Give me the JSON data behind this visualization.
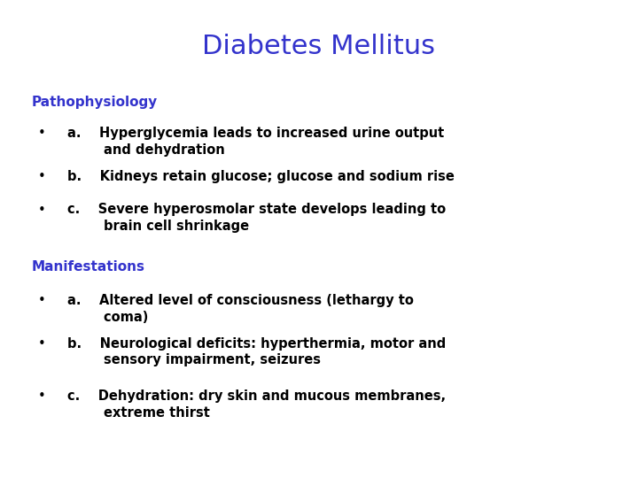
{
  "title": "Diabetes Mellitus",
  "title_color": "#3333cc",
  "title_fontsize": 22,
  "title_fontweight": "normal",
  "background_color": "#ffffff",
  "section1_header": "Pathophysiology",
  "section1_color": "#3333cc",
  "section1_fontsize": 11,
  "section2_header": "Manifestations",
  "section2_color": "#3333cc",
  "section2_fontsize": 11,
  "bullet_color": "#000000",
  "bullet_fontsize": 10.5,
  "section1_bullets": [
    "a.    Hyperglycemia leads to increased urine output\n        and dehydration",
    "b.    Kidneys retain glucose; glucose and sodium rise",
    "c.    Severe hyperosmolar state develops leading to\n        brain cell shrinkage"
  ],
  "section2_bullets": [
    "a.    Altered level of consciousness (lethargy to\n        coma)",
    "b.    Neurological deficits: hyperthermia, motor and\n        sensory impairment, seizures",
    "c.    Dehydration: dry skin and mucous membranes,\n        extreme thirst"
  ]
}
